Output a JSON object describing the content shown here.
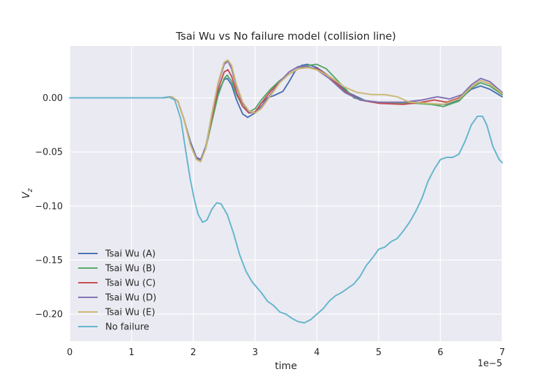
{
  "chart_data": {
    "type": "line",
    "title": "Tsai Wu vs No failure model (collision line)",
    "xlabel": "time",
    "ylabel": "V",
    "ylabel_sub": "z",
    "x_offset_text": "1e−5",
    "xlim": [
      0,
      7
    ],
    "ylim": [
      -0.225,
      0.048
    ],
    "x_scale_note": "x values are in units of 1e-5",
    "xticks": [
      0,
      1,
      2,
      3,
      4,
      5,
      6,
      7
    ],
    "xtick_labels": [
      "0",
      "1",
      "2",
      "3",
      "4",
      "5",
      "6",
      "7"
    ],
    "yticks": [
      0.0,
      -0.05,
      -0.1,
      -0.15,
      -0.2
    ],
    "ytick_labels": [
      "0.00",
      "−0.05",
      "−0.10",
      "−0.15",
      "−0.20"
    ],
    "grid": true,
    "legend_position": "lower-left",
    "background": "#eaeaf2",
    "series": [
      {
        "name": "Tsai Wu (A)",
        "color": "#4c72b0",
        "points": [
          [
            0,
            0
          ],
          [
            1.5,
            0
          ],
          [
            1.65,
            0.001
          ],
          [
            1.75,
            -0.003
          ],
          [
            1.85,
            -0.02
          ],
          [
            1.95,
            -0.04
          ],
          [
            2.05,
            -0.055
          ],
          [
            2.12,
            -0.057
          ],
          [
            2.2,
            -0.045
          ],
          [
            2.3,
            -0.02
          ],
          [
            2.4,
            0.005
          ],
          [
            2.5,
            0.017
          ],
          [
            2.55,
            0.018
          ],
          [
            2.62,
            0.012
          ],
          [
            2.7,
            -0.002
          ],
          [
            2.8,
            -0.015
          ],
          [
            2.88,
            -0.018
          ],
          [
            3.0,
            -0.014
          ],
          [
            3.1,
            -0.005
          ],
          [
            3.2,
            0.0
          ],
          [
            3.3,
            0.002
          ],
          [
            3.45,
            0.006
          ],
          [
            3.55,
            0.015
          ],
          [
            3.65,
            0.025
          ],
          [
            3.75,
            0.03
          ],
          [
            3.85,
            0.031
          ],
          [
            4.0,
            0.028
          ],
          [
            4.2,
            0.02
          ],
          [
            4.5,
            0.005
          ],
          [
            4.8,
            -0.003
          ],
          [
            5.2,
            -0.005
          ],
          [
            5.6,
            -0.004
          ],
          [
            5.9,
            -0.006
          ],
          [
            6.1,
            -0.006
          ],
          [
            6.3,
            -0.002
          ],
          [
            6.5,
            0.008
          ],
          [
            6.65,
            0.011
          ],
          [
            6.8,
            0.008
          ],
          [
            7.0,
            0.001
          ]
        ]
      },
      {
        "name": "Tsai Wu (B)",
        "color": "#55a868",
        "points": [
          [
            0,
            0
          ],
          [
            1.5,
            0
          ],
          [
            1.65,
            0.001
          ],
          [
            1.75,
            -0.003
          ],
          [
            1.85,
            -0.02
          ],
          [
            1.95,
            -0.042
          ],
          [
            2.05,
            -0.056
          ],
          [
            2.12,
            -0.058
          ],
          [
            2.2,
            -0.047
          ],
          [
            2.3,
            -0.022
          ],
          [
            2.4,
            0.002
          ],
          [
            2.5,
            0.018
          ],
          [
            2.55,
            0.021
          ],
          [
            2.62,
            0.015
          ],
          [
            2.7,
            0.003
          ],
          [
            2.8,
            -0.008
          ],
          [
            2.9,
            -0.013
          ],
          [
            3.0,
            -0.01
          ],
          [
            3.1,
            -0.002
          ],
          [
            3.25,
            0.008
          ],
          [
            3.4,
            0.016
          ],
          [
            3.55,
            0.022
          ],
          [
            3.7,
            0.027
          ],
          [
            3.85,
            0.03
          ],
          [
            4.0,
            0.031
          ],
          [
            4.15,
            0.027
          ],
          [
            4.35,
            0.015
          ],
          [
            4.6,
            0.0
          ],
          [
            4.9,
            -0.004
          ],
          [
            5.3,
            -0.005
          ],
          [
            5.6,
            -0.005
          ],
          [
            5.85,
            -0.006
          ],
          [
            6.05,
            -0.008
          ],
          [
            6.3,
            -0.003
          ],
          [
            6.5,
            0.009
          ],
          [
            6.65,
            0.014
          ],
          [
            6.8,
            0.011
          ],
          [
            7.0,
            0.003
          ]
        ]
      },
      {
        "name": "Tsai Wu (C)",
        "color": "#c44e52",
        "points": [
          [
            0,
            0
          ],
          [
            1.5,
            0
          ],
          [
            1.65,
            0.001
          ],
          [
            1.75,
            -0.003
          ],
          [
            1.85,
            -0.02
          ],
          [
            1.95,
            -0.042
          ],
          [
            2.05,
            -0.056
          ],
          [
            2.12,
            -0.058
          ],
          [
            2.2,
            -0.046
          ],
          [
            2.3,
            -0.018
          ],
          [
            2.4,
            0.008
          ],
          [
            2.5,
            0.024
          ],
          [
            2.56,
            0.026
          ],
          [
            2.62,
            0.02
          ],
          [
            2.7,
            0.005
          ],
          [
            2.8,
            -0.008
          ],
          [
            2.9,
            -0.014
          ],
          [
            3.0,
            -0.013
          ],
          [
            3.1,
            -0.005
          ],
          [
            3.25,
            0.006
          ],
          [
            3.4,
            0.015
          ],
          [
            3.55,
            0.022
          ],
          [
            3.7,
            0.027
          ],
          [
            3.85,
            0.028
          ],
          [
            4.0,
            0.027
          ],
          [
            4.2,
            0.02
          ],
          [
            4.45,
            0.006
          ],
          [
            4.7,
            -0.002
          ],
          [
            5.0,
            -0.005
          ],
          [
            5.4,
            -0.006
          ],
          [
            5.7,
            -0.004
          ],
          [
            5.9,
            -0.002
          ],
          [
            6.1,
            -0.004
          ],
          [
            6.3,
            0.0
          ],
          [
            6.5,
            0.01
          ],
          [
            6.65,
            0.016
          ],
          [
            6.8,
            0.013
          ],
          [
            7.0,
            0.004
          ]
        ]
      },
      {
        "name": "Tsai Wu (D)",
        "color": "#8172b2",
        "points": [
          [
            0,
            0
          ],
          [
            1.5,
            0
          ],
          [
            1.65,
            0.001
          ],
          [
            1.75,
            -0.003
          ],
          [
            1.85,
            -0.02
          ],
          [
            1.95,
            -0.042
          ],
          [
            2.05,
            -0.056
          ],
          [
            2.12,
            -0.058
          ],
          [
            2.2,
            -0.046
          ],
          [
            2.3,
            -0.015
          ],
          [
            2.4,
            0.013
          ],
          [
            2.5,
            0.031
          ],
          [
            2.56,
            0.034
          ],
          [
            2.62,
            0.027
          ],
          [
            2.7,
            0.01
          ],
          [
            2.8,
            -0.005
          ],
          [
            2.9,
            -0.013
          ],
          [
            3.0,
            -0.014
          ],
          [
            3.1,
            -0.008
          ],
          [
            3.25,
            0.003
          ],
          [
            3.4,
            0.015
          ],
          [
            3.55,
            0.024
          ],
          [
            3.7,
            0.029
          ],
          [
            3.85,
            0.029
          ],
          [
            4.0,
            0.026
          ],
          [
            4.2,
            0.018
          ],
          [
            4.45,
            0.005
          ],
          [
            4.7,
            -0.002
          ],
          [
            5.0,
            -0.004
          ],
          [
            5.4,
            -0.004
          ],
          [
            5.7,
            -0.002
          ],
          [
            5.95,
            0.001
          ],
          [
            6.15,
            -0.001
          ],
          [
            6.35,
            0.003
          ],
          [
            6.5,
            0.012
          ],
          [
            6.65,
            0.018
          ],
          [
            6.8,
            0.015
          ],
          [
            7.0,
            0.005
          ]
        ]
      },
      {
        "name": "Tsai Wu (E)",
        "color": "#ccb974",
        "points": [
          [
            0,
            0
          ],
          [
            1.5,
            0
          ],
          [
            1.65,
            0.001
          ],
          [
            1.75,
            -0.003
          ],
          [
            1.85,
            -0.02
          ],
          [
            1.95,
            -0.043
          ],
          [
            2.05,
            -0.057
          ],
          [
            2.12,
            -0.059
          ],
          [
            2.2,
            -0.047
          ],
          [
            2.3,
            -0.015
          ],
          [
            2.4,
            0.014
          ],
          [
            2.5,
            0.033
          ],
          [
            2.56,
            0.035
          ],
          [
            2.62,
            0.03
          ],
          [
            2.7,
            0.012
          ],
          [
            2.8,
            -0.004
          ],
          [
            2.9,
            -0.012
          ],
          [
            3.0,
            -0.014
          ],
          [
            3.1,
            -0.01
          ],
          [
            3.25,
            0.002
          ],
          [
            3.4,
            0.014
          ],
          [
            3.55,
            0.022
          ],
          [
            3.7,
            0.027
          ],
          [
            3.85,
            0.028
          ],
          [
            4.0,
            0.026
          ],
          [
            4.2,
            0.02
          ],
          [
            4.45,
            0.01
          ],
          [
            4.65,
            0.005
          ],
          [
            4.9,
            0.003
          ],
          [
            5.1,
            0.003
          ],
          [
            5.3,
            0.001
          ],
          [
            5.5,
            -0.004
          ],
          [
            5.8,
            -0.005
          ],
          [
            6.05,
            -0.006
          ],
          [
            6.3,
            -0.001
          ],
          [
            6.5,
            0.01
          ],
          [
            6.65,
            0.016
          ],
          [
            6.8,
            0.013
          ],
          [
            7.0,
            0.004
          ]
        ]
      },
      {
        "name": "No failure",
        "color": "#64b5cd",
        "points": [
          [
            0,
            0
          ],
          [
            1.5,
            0
          ],
          [
            1.6,
            0.001
          ],
          [
            1.7,
            -0.002
          ],
          [
            1.8,
            -0.02
          ],
          [
            1.88,
            -0.05
          ],
          [
            1.95,
            -0.075
          ],
          [
            2.02,
            -0.095
          ],
          [
            2.08,
            -0.108
          ],
          [
            2.15,
            -0.115
          ],
          [
            2.22,
            -0.113
          ],
          [
            2.3,
            -0.103
          ],
          [
            2.38,
            -0.097
          ],
          [
            2.45,
            -0.098
          ],
          [
            2.55,
            -0.108
          ],
          [
            2.65,
            -0.125
          ],
          [
            2.75,
            -0.145
          ],
          [
            2.85,
            -0.16
          ],
          [
            2.95,
            -0.17
          ],
          [
            3.1,
            -0.18
          ],
          [
            3.2,
            -0.188
          ],
          [
            3.3,
            -0.192
          ],
          [
            3.4,
            -0.198
          ],
          [
            3.5,
            -0.2
          ],
          [
            3.6,
            -0.204
          ],
          [
            3.7,
            -0.207
          ],
          [
            3.8,
            -0.208
          ],
          [
            3.9,
            -0.205
          ],
          [
            4.0,
            -0.2
          ],
          [
            4.1,
            -0.195
          ],
          [
            4.2,
            -0.188
          ],
          [
            4.3,
            -0.183
          ],
          [
            4.4,
            -0.18
          ],
          [
            4.5,
            -0.176
          ],
          [
            4.6,
            -0.172
          ],
          [
            4.7,
            -0.165
          ],
          [
            4.8,
            -0.155
          ],
          [
            4.9,
            -0.148
          ],
          [
            5.0,
            -0.14
          ],
          [
            5.1,
            -0.138
          ],
          [
            5.2,
            -0.133
          ],
          [
            5.3,
            -0.13
          ],
          [
            5.4,
            -0.123
          ],
          [
            5.5,
            -0.115
          ],
          [
            5.6,
            -0.105
          ],
          [
            5.7,
            -0.093
          ],
          [
            5.8,
            -0.077
          ],
          [
            5.9,
            -0.066
          ],
          [
            6.0,
            -0.057
          ],
          [
            6.1,
            -0.055
          ],
          [
            6.2,
            -0.055
          ],
          [
            6.3,
            -0.052
          ],
          [
            6.4,
            -0.04
          ],
          [
            6.5,
            -0.025
          ],
          [
            6.6,
            -0.017
          ],
          [
            6.68,
            -0.017
          ],
          [
            6.75,
            -0.025
          ],
          [
            6.85,
            -0.045
          ],
          [
            6.95,
            -0.057
          ],
          [
            7.0,
            -0.06
          ]
        ]
      }
    ]
  }
}
